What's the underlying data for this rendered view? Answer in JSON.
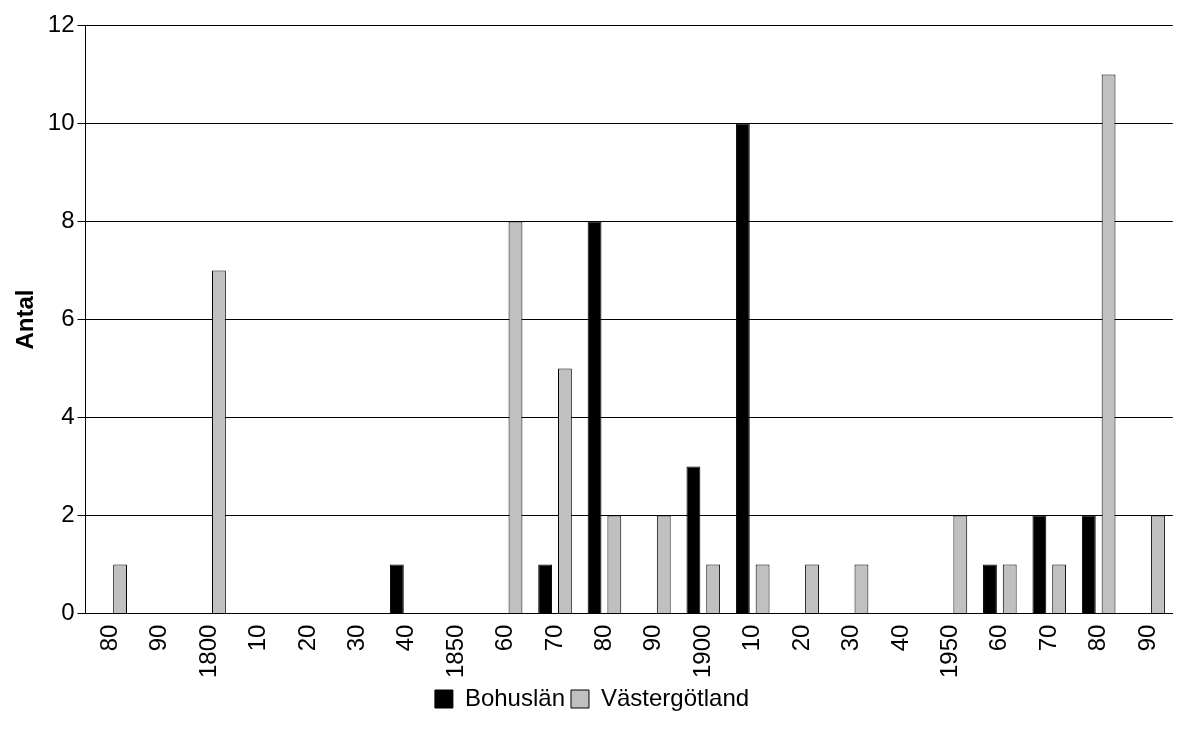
{
  "chart_data": {
    "type": "bar",
    "ylabel": "Antal",
    "categories": [
      "80",
      "90",
      "1800",
      "10",
      "20",
      "30",
      "40",
      "1850",
      "60",
      "70",
      "80",
      "90",
      "1900",
      "10",
      "20",
      "30",
      "40",
      "1950",
      "60",
      "70",
      "80",
      "90"
    ],
    "series": [
      {
        "name": "Bohuslän",
        "color": "#000000",
        "values": [
          0,
          0,
          0,
          0,
          0,
          0,
          1,
          0,
          0,
          1,
          8,
          0,
          3,
          10,
          0,
          0,
          0,
          0,
          1,
          2,
          2,
          0
        ]
      },
      {
        "name": "Västergötland",
        "color": "#c0c0c0",
        "values": [
          1,
          0,
          7,
          0,
          0,
          0,
          0,
          0,
          8,
          5,
          2,
          2,
          1,
          1,
          1,
          1,
          0,
          2,
          1,
          1,
          11,
          2
        ]
      }
    ],
    "ylim": [
      0,
      12
    ],
    "yticks": [
      0,
      2,
      4,
      6,
      8,
      10,
      12
    ],
    "grid": "y",
    "legend": "bottom"
  }
}
